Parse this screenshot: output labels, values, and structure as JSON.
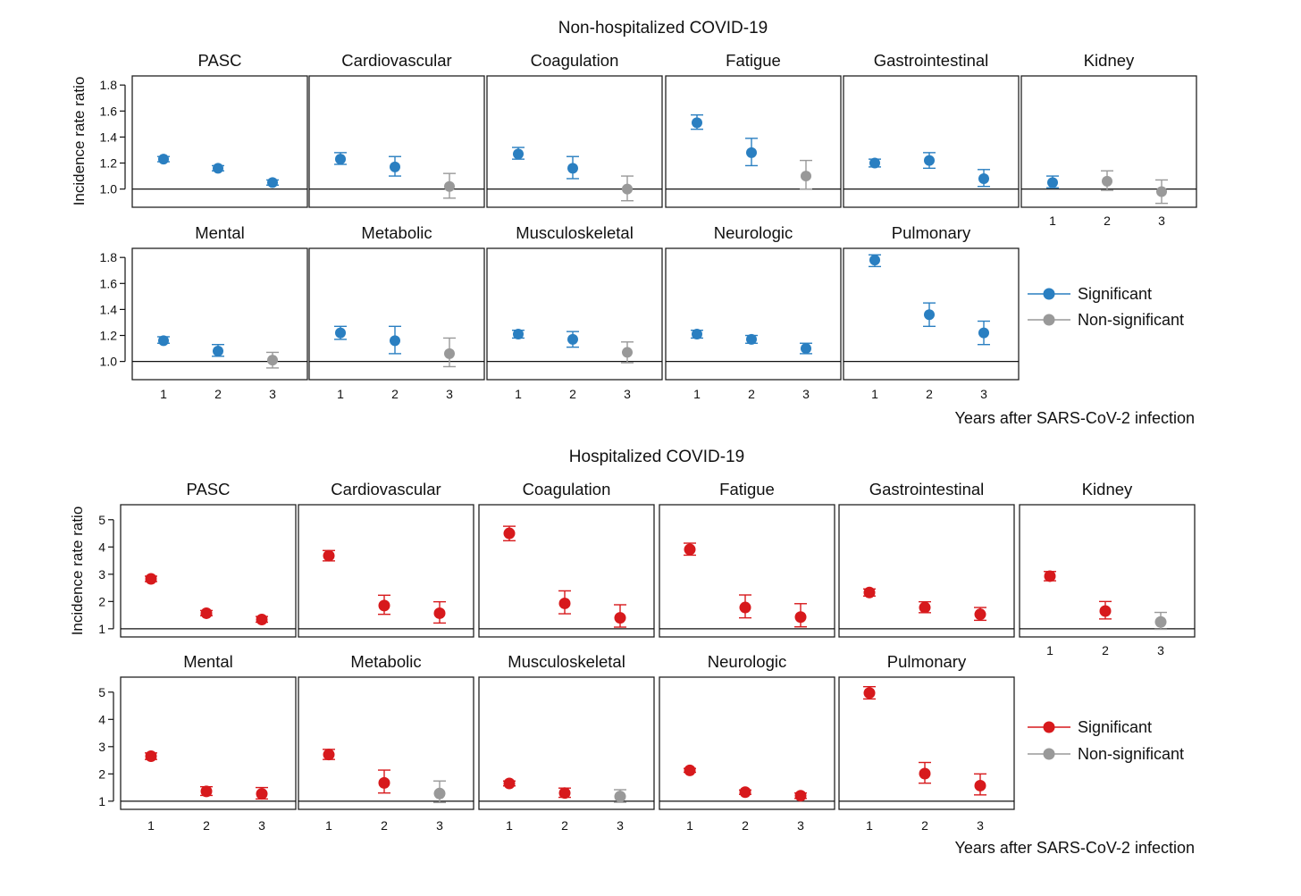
{
  "colors": {
    "non_hospitalized": "#2a7fc1",
    "hospitalized": "#d7191c",
    "nonsig": "#999999",
    "frame": "#222222"
  },
  "chart_data": [
    {
      "type": "scatter",
      "title": "Non-hospitalized COVID-19",
      "ylabel": "Incidence rate ratio",
      "xlabel": "Years after SARS-CoV-2 infection",
      "x": [
        1,
        2,
        3
      ],
      "x_tick_labels": [
        "1",
        "2",
        "3"
      ],
      "ylim": [
        0.86,
        1.87
      ],
      "y_ticks": [
        1.0,
        1.2,
        1.4,
        1.6,
        1.8
      ],
      "y_tick_labels": [
        "1.0",
        "1.2",
        "1.4",
        "1.6",
        "1.8"
      ],
      "reference_line": 1.0,
      "legend": {
        "position": "right",
        "entries": [
          "Significant",
          "Non-significant"
        ]
      },
      "panels": [
        {
          "name": "PASC",
          "values": [
            1.23,
            1.16,
            1.05
          ],
          "lower": [
            1.21,
            1.14,
            1.03
          ],
          "upper": [
            1.25,
            1.18,
            1.07
          ],
          "significant": [
            true,
            true,
            true
          ]
        },
        {
          "name": "Cardiovascular",
          "values": [
            1.23,
            1.17,
            1.02
          ],
          "lower": [
            1.19,
            1.1,
            0.93
          ],
          "upper": [
            1.28,
            1.25,
            1.12
          ],
          "significant": [
            true,
            true,
            false
          ]
        },
        {
          "name": "Coagulation",
          "values": [
            1.27,
            1.16,
            1.0
          ],
          "lower": [
            1.23,
            1.08,
            0.91
          ],
          "upper": [
            1.32,
            1.25,
            1.1
          ],
          "significant": [
            true,
            true,
            false
          ]
        },
        {
          "name": "Fatigue",
          "values": [
            1.51,
            1.28,
            1.1
          ],
          "lower": [
            1.46,
            1.18,
            1.0
          ],
          "upper": [
            1.57,
            1.39,
            1.22
          ],
          "significant": [
            true,
            true,
            false
          ]
        },
        {
          "name": "Gastrointestinal",
          "values": [
            1.2,
            1.22,
            1.08
          ],
          "lower": [
            1.17,
            1.16,
            1.02
          ],
          "upper": [
            1.23,
            1.28,
            1.15
          ],
          "significant": [
            true,
            true,
            true
          ]
        },
        {
          "name": "Kidney",
          "values": [
            1.05,
            1.06,
            0.98
          ],
          "lower": [
            1.01,
            0.99,
            0.89
          ],
          "upper": [
            1.1,
            1.14,
            1.07
          ],
          "significant": [
            true,
            false,
            false
          ]
        },
        {
          "name": "Mental",
          "values": [
            1.16,
            1.08,
            1.01
          ],
          "lower": [
            1.14,
            1.04,
            0.95
          ],
          "upper": [
            1.19,
            1.13,
            1.07
          ],
          "significant": [
            true,
            true,
            false
          ]
        },
        {
          "name": "Metabolic",
          "values": [
            1.22,
            1.16,
            1.06
          ],
          "lower": [
            1.17,
            1.06,
            0.96
          ],
          "upper": [
            1.27,
            1.27,
            1.18
          ],
          "significant": [
            true,
            true,
            false
          ]
        },
        {
          "name": "Musculoskeletal",
          "values": [
            1.21,
            1.17,
            1.07
          ],
          "lower": [
            1.18,
            1.11,
            0.99
          ],
          "upper": [
            1.24,
            1.23,
            1.15
          ],
          "significant": [
            true,
            true,
            false
          ]
        },
        {
          "name": "Neurologic",
          "values": [
            1.21,
            1.17,
            1.1
          ],
          "lower": [
            1.18,
            1.14,
            1.06
          ],
          "upper": [
            1.24,
            1.2,
            1.14
          ],
          "significant": [
            true,
            true,
            true
          ]
        },
        {
          "name": "Pulmonary",
          "values": [
            1.78,
            1.36,
            1.22
          ],
          "lower": [
            1.73,
            1.27,
            1.13
          ],
          "upper": [
            1.82,
            1.45,
            1.31
          ],
          "significant": [
            true,
            true,
            true
          ]
        }
      ]
    },
    {
      "type": "scatter",
      "title": "Hospitalized COVID-19",
      "ylabel": "Incidence rate ratio",
      "xlabel": "Years after SARS-CoV-2 infection",
      "x": [
        1,
        2,
        3
      ],
      "x_tick_labels": [
        "1",
        "2",
        "3"
      ],
      "ylim": [
        0.7,
        5.55
      ],
      "y_ticks": [
        1,
        2,
        3,
        4,
        5
      ],
      "y_tick_labels": [
        "1",
        "2",
        "3",
        "4",
        "5"
      ],
      "reference_line": 1,
      "legend": {
        "position": "right",
        "entries": [
          "Significant",
          "Non-significant"
        ]
      },
      "panels": [
        {
          "name": "PASC",
          "values": [
            2.83,
            1.57,
            1.34
          ],
          "lower": [
            2.73,
            1.48,
            1.24
          ],
          "upper": [
            2.93,
            1.67,
            1.45
          ],
          "significant": [
            true,
            true,
            true
          ]
        },
        {
          "name": "Cardiovascular",
          "values": [
            3.68,
            1.85,
            1.57
          ],
          "lower": [
            3.49,
            1.53,
            1.21
          ],
          "upper": [
            3.87,
            2.23,
            1.99
          ],
          "significant": [
            true,
            true,
            true
          ]
        },
        {
          "name": "Coagulation",
          "values": [
            4.5,
            1.93,
            1.4
          ],
          "lower": [
            4.23,
            1.55,
            1.06
          ],
          "upper": [
            4.76,
            2.39,
            1.88
          ],
          "significant": [
            true,
            true,
            true
          ]
        },
        {
          "name": "Fatigue",
          "values": [
            3.91,
            1.78,
            1.43
          ],
          "lower": [
            3.7,
            1.4,
            1.07
          ],
          "upper": [
            4.14,
            2.24,
            1.92
          ],
          "significant": [
            true,
            true,
            true
          ]
        },
        {
          "name": "Gastrointestinal",
          "values": [
            2.33,
            1.78,
            1.53
          ],
          "lower": [
            2.2,
            1.59,
            1.31
          ],
          "upper": [
            2.46,
            1.99,
            1.78
          ],
          "significant": [
            true,
            true,
            true
          ]
        },
        {
          "name": "Kidney",
          "values": [
            2.93,
            1.65,
            1.25
          ],
          "lower": [
            2.76,
            1.36,
            0.98
          ],
          "upper": [
            3.1,
            2.0,
            1.6
          ],
          "significant": [
            true,
            true,
            false
          ]
        },
        {
          "name": "Mental",
          "values": [
            2.65,
            1.36,
            1.27
          ],
          "lower": [
            2.53,
            1.21,
            1.08
          ],
          "upper": [
            2.77,
            1.53,
            1.5
          ],
          "significant": [
            true,
            true,
            true
          ]
        },
        {
          "name": "Metabolic",
          "values": [
            2.71,
            1.67,
            1.28
          ],
          "lower": [
            2.53,
            1.3,
            0.95
          ],
          "upper": [
            2.9,
            2.14,
            1.74
          ],
          "significant": [
            true,
            true,
            false
          ]
        },
        {
          "name": "Musculoskeletal",
          "values": [
            1.65,
            1.3,
            1.17
          ],
          "lower": [
            1.56,
            1.14,
            0.96
          ],
          "upper": [
            1.74,
            1.48,
            1.42
          ],
          "significant": [
            true,
            true,
            false
          ]
        },
        {
          "name": "Neurologic",
          "values": [
            2.13,
            1.33,
            1.2
          ],
          "lower": [
            2.06,
            1.25,
            1.1
          ],
          "upper": [
            2.2,
            1.41,
            1.3
          ],
          "significant": [
            true,
            true,
            true
          ]
        },
        {
          "name": "Pulmonary",
          "values": [
            4.97,
            2.01,
            1.57
          ],
          "lower": [
            4.75,
            1.66,
            1.23
          ],
          "upper": [
            5.2,
            2.42,
            2.0
          ],
          "significant": [
            true,
            true,
            true
          ]
        }
      ]
    }
  ]
}
